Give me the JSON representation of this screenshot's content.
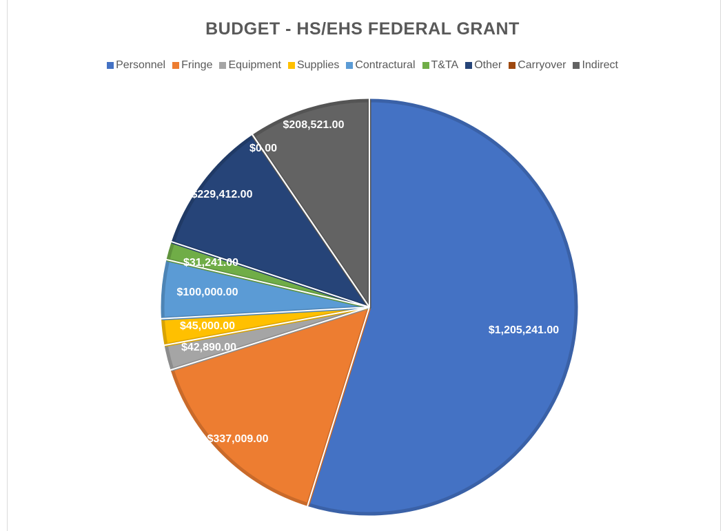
{
  "chart_data": {
    "type": "pie",
    "title": "BUDGET - HS/EHS FEDERAL GRANT",
    "categories": [
      "Personnel",
      "Fringe",
      "Equipment",
      "Supplies",
      "Contractural",
      "T&TA",
      "Other",
      "Carryover",
      "Indirect"
    ],
    "values": [
      1205241,
      337009,
      42890,
      45000,
      100000,
      31241,
      229412,
      0,
      208521
    ],
    "data_labels": [
      "$1,205,241.00",
      "$337,009.00",
      "$42,890.00",
      "$45,000.00",
      "$100,000.00",
      "$31,241.00",
      "$229,412.00",
      "$0.00",
      "$208,521.00"
    ],
    "colors": [
      "#4472C4",
      "#ED7D31",
      "#A5A5A5",
      "#FFC000",
      "#5B9BD5",
      "#70AD47",
      "#264478",
      "#9E480E",
      "#636363"
    ],
    "legend_position": "top"
  }
}
